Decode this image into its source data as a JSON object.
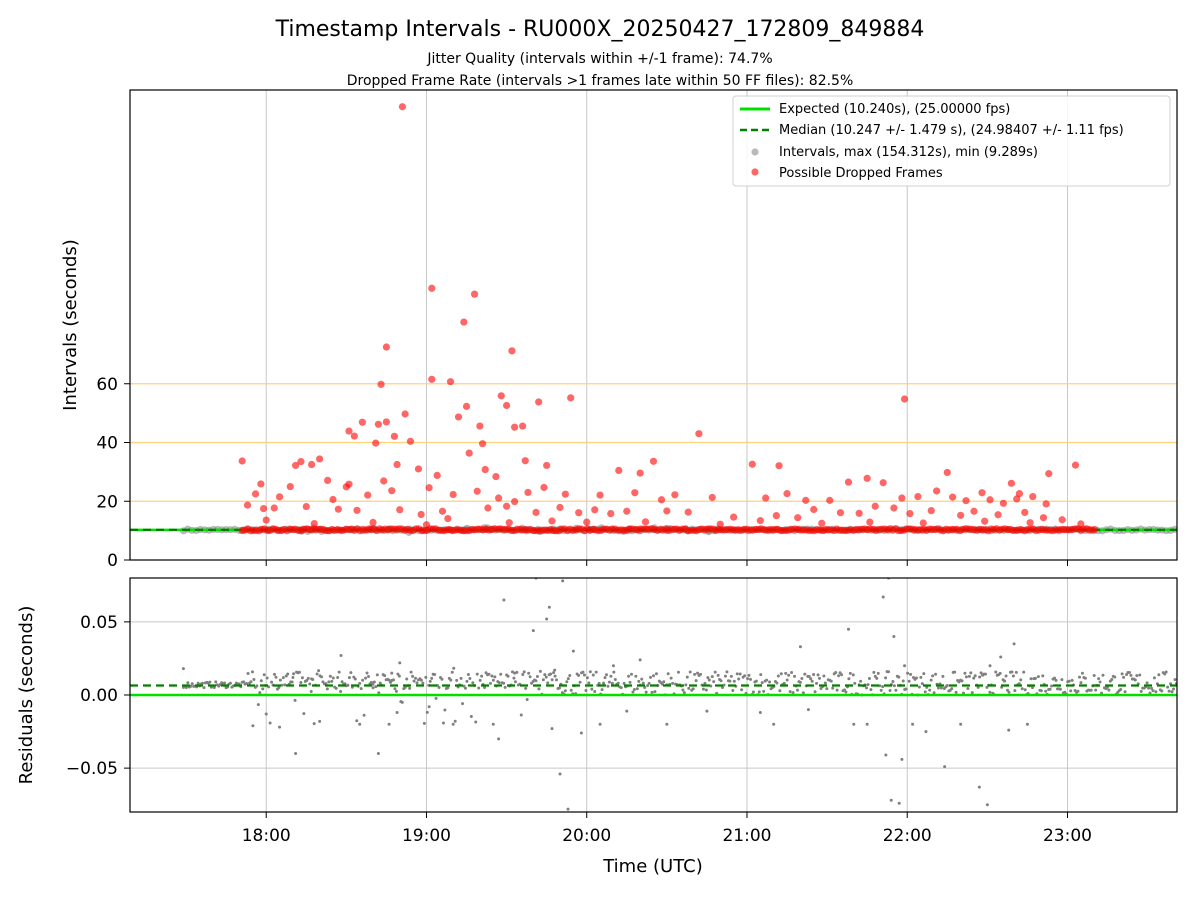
{
  "title": "Timestamp Intervals - RU000X_20250427_172809_849884",
  "subtitle_1": "Jitter Quality (intervals within +/-1 frame): 74.7%",
  "subtitle_2": "Dropped Frame Rate (intervals >1 frames late within 50 FF files): 82.5%",
  "colors": {
    "expected": "#00e000",
    "median": "#008000",
    "intervals": "#808080",
    "dropped": "#ff0000",
    "threshold": "#ffd27a",
    "grid": "#c8c8c8"
  },
  "chart_data": [
    {
      "type": "scatter",
      "ylabel": "Intervals (seconds)",
      "xlim": [
        "17:09",
        "23:41"
      ],
      "ylim": [
        0,
        160
      ],
      "y_ticks": [
        0,
        20,
        40,
        60
      ],
      "grid": "on (vertical at hour ticks)",
      "threshold_lines": [
        20,
        40,
        60
      ],
      "legend_position": "top-right",
      "legend": {
        "expected": "Expected (10.240s), (25.00000 fps)",
        "median": "Median (10.247 +/- 1.479 s), (24.98407 +/- 1.11 fps)",
        "intervals": "Intervals, max (154.312s), min (9.289s)",
        "dropped": "Possible Dropped Frames"
      },
      "expected_value": 10.24,
      "median_value": 10.247,
      "interval_stats": {
        "max": 154.312,
        "min": 9.289
      },
      "normal_interval_range": [
        "17:29",
        "23:41"
      ],
      "dense_dropped_band": {
        "from": "17:51",
        "to": "23:11",
        "value": 10.3
      },
      "dropped_frames": [
        [
          "18:51",
          154.3
        ],
        [
          "19:02",
          92.5
        ],
        [
          "19:18",
          90.5
        ],
        [
          "19:14",
          81.0
        ],
        [
          "18:45",
          72.5
        ],
        [
          "19:32",
          71.2
        ],
        [
          "19:02",
          61.5
        ],
        [
          "19:09",
          60.7
        ],
        [
          "18:43",
          59.8
        ],
        [
          "19:28",
          55.9
        ],
        [
          "21:59",
          54.8
        ],
        [
          "19:54",
          55.2
        ],
        [
          "19:42",
          53.8
        ],
        [
          "19:30",
          52.6
        ],
        [
          "19:15",
          52.3
        ],
        [
          "18:52",
          49.7
        ],
        [
          "18:36",
          46.9
        ],
        [
          "18:42",
          46.2
        ],
        [
          "18:45",
          47.0
        ],
        [
          "19:12",
          48.7
        ],
        [
          "19:20",
          45.6
        ],
        [
          "19:33",
          45.2
        ],
        [
          "18:31",
          43.9
        ],
        [
          "20:42",
          43.0
        ],
        [
          "18:33",
          42.2
        ],
        [
          "18:48",
          42.1
        ],
        [
          "19:36",
          45.6
        ],
        [
          "18:54",
          40.4
        ],
        [
          "18:41",
          39.8
        ],
        [
          "19:21",
          39.6
        ],
        [
          "19:16",
          36.4
        ],
        [
          "18:20",
          34.4
        ],
        [
          "18:13",
          33.5
        ],
        [
          "17:51",
          33.7
        ],
        [
          "18:11",
          32.2
        ],
        [
          "18:17",
          32.5
        ],
        [
          "18:49",
          32.5
        ],
        [
          "18:57",
          31.0
        ],
        [
          "19:22",
          30.8
        ],
        [
          "19:37",
          33.8
        ],
        [
          "19:45",
          32.2
        ],
        [
          "20:12",
          30.5
        ],
        [
          "20:20",
          29.6
        ],
        [
          "21:02",
          32.6
        ],
        [
          "21:12",
          32.1
        ],
        [
          "22:15",
          29.8
        ],
        [
          "22:53",
          29.4
        ],
        [
          "23:03",
          32.3
        ],
        [
          "20:25",
          33.6
        ],
        [
          "19:26",
          28.4
        ],
        [
          "19:04",
          28.8
        ],
        [
          "18:44",
          26.9
        ],
        [
          "18:23",
          27.1
        ],
        [
          "18:31",
          25.8
        ],
        [
          "18:09",
          25.0
        ],
        [
          "17:58",
          25.9
        ],
        [
          "17:56",
          22.5
        ],
        [
          "18:05",
          21.5
        ],
        [
          "18:25",
          20.6
        ],
        [
          "18:30",
          24.9
        ],
        [
          "18:38",
          22.1
        ],
        [
          "18:47",
          23.6
        ],
        [
          "19:01",
          24.6
        ],
        [
          "19:10",
          22.3
        ],
        [
          "19:19",
          23.4
        ],
        [
          "19:27",
          21.1
        ],
        [
          "19:33",
          19.9
        ],
        [
          "19:38",
          23.0
        ],
        [
          "19:44",
          24.7
        ],
        [
          "19:52",
          22.4
        ],
        [
          "20:05",
          22.1
        ],
        [
          "20:18",
          22.9
        ],
        [
          "20:28",
          20.5
        ],
        [
          "20:33",
          22.2
        ],
        [
          "20:47",
          21.3
        ],
        [
          "21:07",
          21.1
        ],
        [
          "21:15",
          22.6
        ],
        [
          "21:22",
          20.3
        ],
        [
          "21:31",
          20.3
        ],
        [
          "21:38",
          26.5
        ],
        [
          "21:45",
          27.8
        ],
        [
          "21:51",
          26.3
        ],
        [
          "21:58",
          21.1
        ],
        [
          "22:04",
          21.6
        ],
        [
          "22:11",
          23.5
        ],
        [
          "22:17",
          21.4
        ],
        [
          "22:22",
          20.2
        ],
        [
          "22:28",
          22.9
        ],
        [
          "22:31",
          20.5
        ],
        [
          "22:36",
          19.3
        ],
        [
          "22:39",
          26.1
        ],
        [
          "22:42",
          22.6
        ],
        [
          "22:47",
          21.6
        ],
        [
          "22:52",
          19.1
        ],
        [
          "22:41",
          20.8
        ],
        [
          "17:53",
          18.7
        ],
        [
          "17:59",
          17.5
        ],
        [
          "18:03",
          17.7
        ],
        [
          "18:15",
          18.2
        ],
        [
          "18:27",
          17.3
        ],
        [
          "18:34",
          16.9
        ],
        [
          "18:50",
          17.1
        ],
        [
          "18:58",
          15.5
        ],
        [
          "19:06",
          16.6
        ],
        [
          "19:23",
          17.7
        ],
        [
          "19:30",
          18.3
        ],
        [
          "19:41",
          16.2
        ],
        [
          "19:50",
          17.9
        ],
        [
          "19:57",
          16.1
        ],
        [
          "20:03",
          17.1
        ],
        [
          "20:09",
          15.8
        ],
        [
          "20:15",
          16.6
        ],
        [
          "20:30",
          16.7
        ],
        [
          "20:38",
          16.3
        ],
        [
          "20:55",
          14.6
        ],
        [
          "21:11",
          15.1
        ],
        [
          "21:19",
          14.4
        ],
        [
          "21:25",
          17.2
        ],
        [
          "21:35",
          16.1
        ],
        [
          "21:42",
          15.9
        ],
        [
          "21:48",
          18.3
        ],
        [
          "21:55",
          17.7
        ],
        [
          "22:01",
          15.8
        ],
        [
          "22:09",
          16.8
        ],
        [
          "22:20",
          15.2
        ],
        [
          "22:25",
          16.6
        ],
        [
          "22:34",
          15.4
        ],
        [
          "22:44",
          16.2
        ],
        [
          "22:51",
          14.4
        ],
        [
          "22:58",
          13.7
        ],
        [
          "18:00",
          13.6
        ],
        [
          "18:18",
          12.4
        ],
        [
          "18:40",
          12.8
        ],
        [
          "19:00",
          12.0
        ],
        [
          "19:08",
          14.1
        ],
        [
          "19:31",
          12.7
        ],
        [
          "19:47",
          13.3
        ],
        [
          "20:00",
          12.9
        ],
        [
          "20:22",
          13.0
        ],
        [
          "20:50",
          12.2
        ],
        [
          "21:05",
          13.4
        ],
        [
          "21:28",
          12.5
        ],
        [
          "21:46",
          12.9
        ],
        [
          "22:06",
          12.6
        ],
        [
          "22:29",
          13.2
        ],
        [
          "22:46",
          12.7
        ],
        [
          "23:05",
          12.3
        ]
      ]
    },
    {
      "type": "scatter",
      "xlabel": "Time (UTC)",
      "ylabel": "Residuals (seconds)",
      "xlim": [
        "17:09",
        "23:41"
      ],
      "ylim": [
        -0.08,
        0.08
      ],
      "y_ticks": [
        -0.05,
        0.0,
        0.05
      ],
      "y_tick_labels": [
        "−0.05",
        "0.00",
        "0.05"
      ],
      "x_ticks": [
        "18:00",
        "19:00",
        "20:00",
        "21:00",
        "22:00",
        "23:00"
      ],
      "grid": "on",
      "expected_residual": 0.0,
      "median_residual": 0.0065,
      "residual_band": {
        "from": "17:29",
        "to": "23:41",
        "low": 0.0,
        "high": 0.016
      },
      "scattered_residuals": [
        [
          "17:29",
          0.018
        ],
        [
          "17:55",
          -0.021
        ],
        [
          "18:00",
          -0.013
        ],
        [
          "18:05",
          -0.022
        ],
        [
          "18:10",
          0.012
        ],
        [
          "18:11",
          -0.04
        ],
        [
          "18:17",
          0.011
        ],
        [
          "18:20",
          -0.018
        ],
        [
          "18:28",
          0.027
        ],
        [
          "18:35",
          -0.02
        ],
        [
          "18:40",
          0.005
        ],
        [
          "18:42",
          -0.04
        ],
        [
          "18:50",
          0.022
        ],
        [
          "18:49",
          -0.012
        ],
        [
          "18:47",
          0.015
        ],
        [
          "18:46",
          -0.02
        ],
        [
          "19:01",
          -0.008
        ],
        [
          "19:10",
          -0.02
        ],
        [
          "19:25",
          -0.02
        ],
        [
          "19:29",
          0.065
        ],
        [
          "19:33",
          0.015
        ],
        [
          "19:40",
          0.044
        ],
        [
          "19:41",
          0.08
        ],
        [
          "19:45",
          0.052
        ],
        [
          "19:46",
          0.06
        ],
        [
          "19:47",
          -0.023
        ],
        [
          "19:48",
          0.017
        ],
        [
          "19:50",
          -0.054
        ],
        [
          "19:51",
          0.078
        ],
        [
          "19:53",
          -0.078
        ],
        [
          "19:55",
          0.03
        ],
        [
          "19:58",
          -0.026
        ],
        [
          "19:27",
          -0.03
        ],
        [
          "20:05",
          -0.02
        ],
        [
          "20:10",
          0.02
        ],
        [
          "20:15",
          -0.011
        ],
        [
          "20:20",
          0.024
        ],
        [
          "20:30",
          -0.02
        ],
        [
          "20:45",
          -0.011
        ],
        [
          "21:05",
          -0.012
        ],
        [
          "21:10",
          -0.02
        ],
        [
          "21:20",
          0.033
        ],
        [
          "21:23",
          -0.01
        ],
        [
          "21:38",
          0.045
        ],
        [
          "21:40",
          -0.02
        ],
        [
          "21:45",
          -0.02
        ],
        [
          "21:51",
          0.067
        ],
        [
          "21:52",
          -0.041
        ],
        [
          "21:53",
          0.08
        ],
        [
          "21:54",
          -0.072
        ],
        [
          "21:55",
          0.04
        ],
        [
          "21:57",
          -0.074
        ],
        [
          "21:58",
          -0.044
        ],
        [
          "21:59",
          0.02
        ],
        [
          "22:02",
          -0.02
        ],
        [
          "22:07",
          -0.025
        ],
        [
          "22:14",
          -0.049
        ],
        [
          "22:20",
          -0.02
        ],
        [
          "22:27",
          -0.063
        ],
        [
          "22:30",
          -0.075
        ],
        [
          "22:35",
          0.026
        ],
        [
          "22:40",
          0.035
        ],
        [
          "22:45",
          -0.02
        ],
        [
          "22:31",
          0.02
        ],
        [
          "22:38",
          -0.024
        ]
      ]
    }
  ]
}
